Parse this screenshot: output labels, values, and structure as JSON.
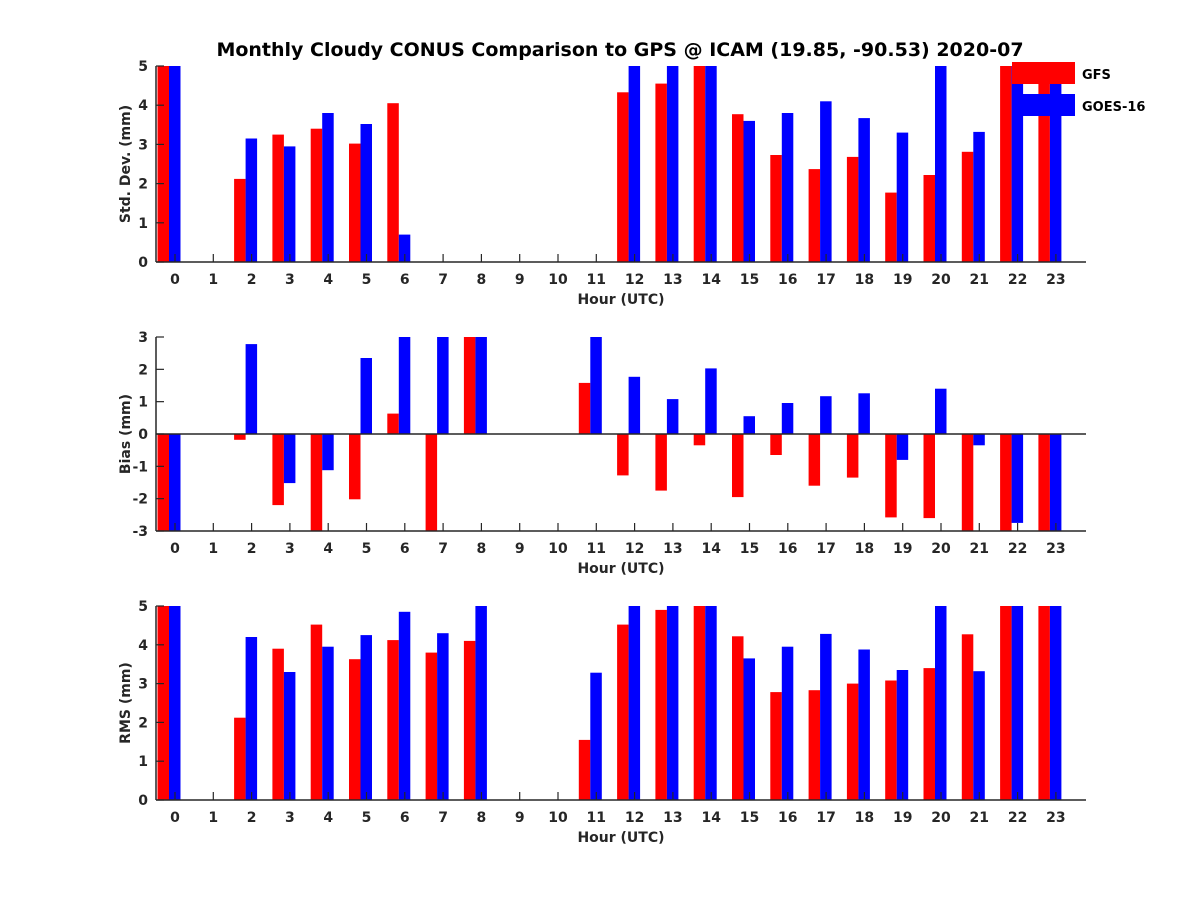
{
  "chart_data": {
    "type": "bar",
    "title": "Monthly Cloudy CONUS Comparison to GPS @ ICAM (19.85, -90.53) 2020-07",
    "legend": {
      "placement": "top-right",
      "entries": [
        {
          "name": "GFS",
          "color": "#ff0000"
        },
        {
          "name": "GOES-16",
          "color": "#0000ff"
        }
      ]
    },
    "categories": [
      "0",
      "1",
      "2",
      "3",
      "4",
      "5",
      "6",
      "7",
      "8",
      "9",
      "10",
      "11",
      "12",
      "13",
      "14",
      "15",
      "16",
      "17",
      "18",
      "19",
      "20",
      "21",
      "22",
      "23"
    ],
    "panels": [
      {
        "ylabel": "Std. Dev. (mm)",
        "xlabel": "Hour (UTC)",
        "ylim": [
          0,
          5
        ],
        "yticks": [
          "0",
          "1",
          "2",
          "3",
          "4",
          "5"
        ],
        "series": [
          {
            "name": "GFS",
            "color": "#ff0000",
            "values": [
              5,
              null,
              2.12,
              3.25,
              3.4,
              3.02,
              4.05,
              null,
              null,
              null,
              null,
              null,
              4.33,
              4.55,
              5,
              3.77,
              2.73,
              2.37,
              2.68,
              1.77,
              2.22,
              2.81,
              5,
              5
            ]
          },
          {
            "name": "GOES-16",
            "color": "#0000ff",
            "values": [
              5,
              null,
              3.15,
              2.95,
              3.8,
              3.52,
              0.7,
              null,
              null,
              null,
              null,
              null,
              5,
              5,
              5,
              3.6,
              3.8,
              4.1,
              3.67,
              3.3,
              5,
              3.32,
              5,
              5
            ]
          }
        ]
      },
      {
        "ylabel": "Bias (mm)",
        "xlabel": "Hour (UTC)",
        "ylim": [
          -3,
          3
        ],
        "yticks": [
          "-3",
          "-2",
          "-1",
          "0",
          "1",
          "2",
          "3"
        ],
        "series": [
          {
            "name": "GFS",
            "color": "#ff0000",
            "values": [
              -3,
              null,
              -0.18,
              -2.2,
              -3,
              -2.02,
              0.63,
              -3,
              3,
              null,
              null,
              1.58,
              -1.28,
              -1.75,
              -0.35,
              -1.95,
              -0.65,
              -1.6,
              -1.35,
              -2.58,
              -2.6,
              -3,
              -3,
              -3
            ]
          },
          {
            "name": "GOES-16",
            "color": "#0000ff",
            "values": [
              -3,
              null,
              2.78,
              -1.52,
              -1.12,
              2.35,
              3,
              3,
              3,
              null,
              null,
              3,
              1.77,
              1.08,
              2.03,
              0.55,
              0.96,
              1.17,
              1.26,
              -0.8,
              1.4,
              -0.35,
              -2.75,
              -3
            ]
          }
        ]
      },
      {
        "ylabel": "RMS (mm)",
        "xlabel": "Hour (UTC)",
        "ylim": [
          0,
          5
        ],
        "yticks": [
          "0",
          "1",
          "2",
          "3",
          "4",
          "5"
        ],
        "series": [
          {
            "name": "GFS",
            "color": "#ff0000",
            "values": [
              5,
              null,
              2.12,
              3.9,
              4.52,
              3.63,
              4.12,
              3.8,
              4.1,
              null,
              null,
              1.55,
              4.52,
              4.9,
              5,
              4.22,
              2.78,
              2.83,
              3.0,
              3.08,
              3.4,
              4.27,
              5,
              5
            ]
          },
          {
            "name": "GOES-16",
            "color": "#0000ff",
            "values": [
              5,
              null,
              4.2,
              3.3,
              3.95,
              4.25,
              4.85,
              4.3,
              5,
              null,
              null,
              3.28,
              5,
              5,
              5,
              3.65,
              3.95,
              4.28,
              3.88,
              3.35,
              5,
              3.32,
              5,
              5
            ]
          }
        ]
      }
    ]
  }
}
